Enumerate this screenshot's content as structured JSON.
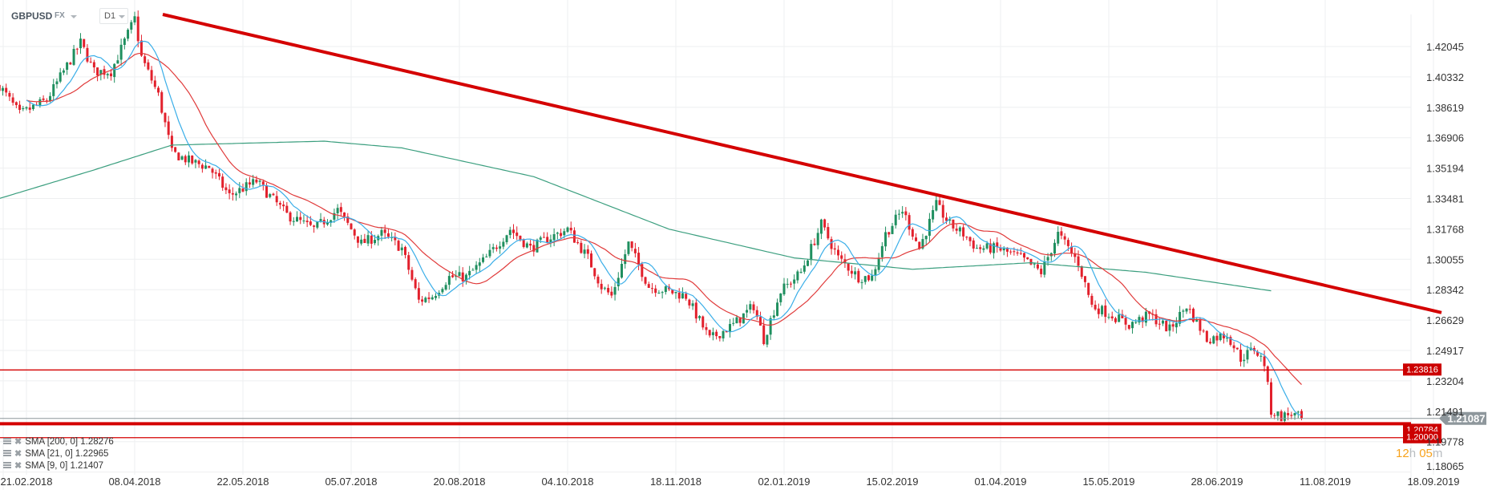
{
  "header": {
    "symbol": "GBPUSD",
    "market": "FX",
    "timeframe": "D1"
  },
  "legend": [
    {
      "label": "SMA [200,  0] 1.28276"
    },
    {
      "label": "SMA [21,  0] 1.22965"
    },
    {
      "label": "SMA [9,  0] 1.21407"
    }
  ],
  "countdown": {
    "hours": "12",
    "h_unit": "h",
    "minutes": "05",
    "m_unit": "m"
  },
  "colors": {
    "up": "#1f8f5f",
    "down": "#e2202c",
    "sma200": "#3a9e7e",
    "sma21": "#e03a3a",
    "sma9": "#3aaee8",
    "trend": "#d40000",
    "level": "#d40000",
    "current": "#8e979c"
  },
  "chart_data": {
    "type": "candlestick",
    "title": "GBPUSD D1",
    "ylim": [
      1.18065,
      1.43758
    ],
    "y_ticks": [
      "1.42045",
      "1.40332",
      "1.38619",
      "1.36906",
      "1.35194",
      "1.33481",
      "1.31768",
      "1.30055",
      "1.28342",
      "1.26629",
      "1.24917",
      "1.23204",
      "1.21491",
      "1.19778",
      "1.18065"
    ],
    "x_ticks": [
      "21.02.2018",
      "08.04.2018",
      "22.05.2018",
      "05.07.2018",
      "20.08.2018",
      "04.10.2018",
      "18.11.2018",
      "02.01.2019",
      "15.02.2019",
      "01.04.2019",
      "15.05.2019",
      "28.06.2019",
      "11.08.2019",
      "18.09.2019"
    ],
    "bars_per_tick": 32,
    "bar_range": [
      -8,
      377
    ],
    "close_anchors": [
      [
        -8,
        1.3984
      ],
      [
        -2,
        1.3822
      ],
      [
        6,
        1.3903
      ],
      [
        16,
        1.4226
      ],
      [
        20,
        1.4064
      ],
      [
        25,
        1.4064
      ],
      [
        32,
        1.4361
      ],
      [
        34,
        1.4145
      ],
      [
        39,
        1.393
      ],
      [
        43,
        1.3606
      ],
      [
        49,
        1.3552
      ],
      [
        54,
        1.3525
      ],
      [
        60,
        1.3364
      ],
      [
        68,
        1.3445
      ],
      [
        77,
        1.3256
      ],
      [
        85,
        1.3175
      ],
      [
        92,
        1.3283
      ],
      [
        99,
        1.3094
      ],
      [
        105,
        1.3148
      ],
      [
        111,
        1.3067
      ],
      [
        116,
        1.2771
      ],
      [
        120,
        1.2798
      ],
      [
        125,
        1.2905
      ],
      [
        130,
        1.2905
      ],
      [
        136,
        1.3013
      ],
      [
        143,
        1.3175
      ],
      [
        149,
        1.3067
      ],
      [
        154,
        1.3121
      ],
      [
        160,
        1.3175
      ],
      [
        166,
        1.3013
      ],
      [
        170,
        1.2852
      ],
      [
        173,
        1.2798
      ],
      [
        178,
        1.3094
      ],
      [
        184,
        1.2852
      ],
      [
        190,
        1.2825
      ],
      [
        195,
        1.2798
      ],
      [
        202,
        1.2555
      ],
      [
        209,
        1.2636
      ],
      [
        215,
        1.2744
      ],
      [
        218,
        1.2555
      ],
      [
        223,
        1.2825
      ],
      [
        229,
        1.2932
      ],
      [
        235,
        1.3202
      ],
      [
        240,
        1.3013
      ],
      [
        246,
        1.2905
      ],
      [
        250,
        1.2905
      ],
      [
        254,
        1.3148
      ],
      [
        259,
        1.3283
      ],
      [
        264,
        1.3067
      ],
      [
        269,
        1.331
      ],
      [
        273,
        1.3202
      ],
      [
        277,
        1.3148
      ],
      [
        281,
        1.3067
      ],
      [
        287,
        1.3067
      ],
      [
        294,
        1.3013
      ],
      [
        300,
        1.2932
      ],
      [
        305,
        1.3148
      ],
      [
        311,
        1.2986
      ],
      [
        315,
        1.2744
      ],
      [
        321,
        1.269
      ],
      [
        326,
        1.2636
      ],
      [
        332,
        1.269
      ],
      [
        338,
        1.2609
      ],
      [
        343,
        1.2744
      ],
      [
        349,
        1.2555
      ],
      [
        355,
        1.2582
      ],
      [
        359,
        1.2447
      ],
      [
        363,
        1.2501
      ],
      [
        366,
        1.242
      ],
      [
        368,
        1.2151
      ],
      [
        371,
        1.2118
      ],
      [
        374,
        1.2135
      ],
      [
        377,
        1.21087
      ]
    ],
    "sma200_anchors": [
      [
        -8,
        1.3348
      ],
      [
        20,
        1.3509
      ],
      [
        43,
        1.3649
      ],
      [
        88,
        1.3671
      ],
      [
        111,
        1.3633
      ],
      [
        150,
        1.3471
      ],
      [
        190,
        1.3175
      ],
      [
        227,
        1.3013
      ],
      [
        262,
        1.2949
      ],
      [
        297,
        1.2986
      ],
      [
        331,
        1.2932
      ],
      [
        368,
        1.28276
      ]
    ],
    "series": [
      {
        "name": "SMA 200",
        "last": 1.28276
      },
      {
        "name": "SMA 21",
        "last": 1.22965
      },
      {
        "name": "SMA 9",
        "last": 1.21407
      }
    ],
    "levels": [
      {
        "value": 1.23816,
        "label": "1.23816",
        "style": "thin"
      },
      {
        "value": 1.20784,
        "label": "1.20784",
        "style": "thick"
      },
      {
        "value": 1.2,
        "label": "1.20000",
        "style": "thin"
      }
    ],
    "current_price": {
      "value": 1.21087,
      "label": "1.21087"
    },
    "trendline": {
      "from": [
        32,
        1.4361
      ],
      "to": [
        420,
        1.2705
      ]
    }
  }
}
